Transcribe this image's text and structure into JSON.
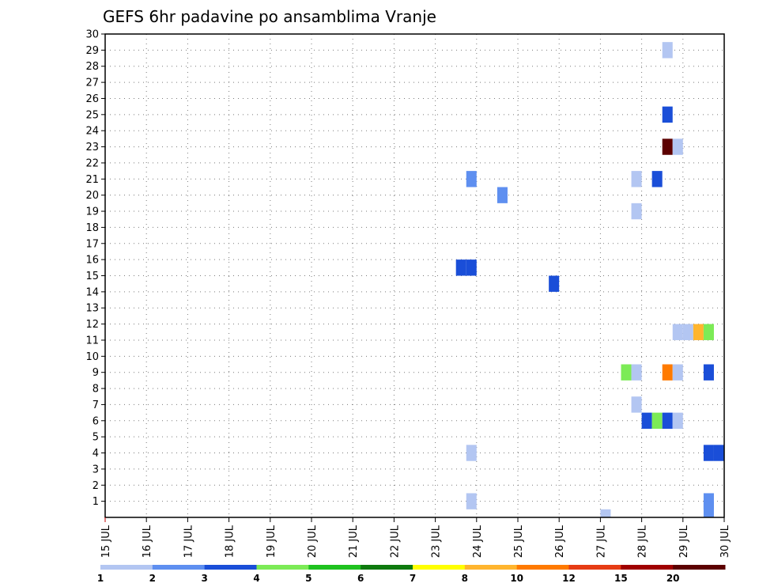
{
  "chart_data": {
    "type": "heatmap",
    "title": "GEFS 6hr padavine po ansamblima Vranje",
    "xlabel": "",
    "ylabel": "",
    "x_ticks": [
      "15 JUL",
      "16 JUL",
      "17 JUL",
      "18 JUL",
      "19 JUL",
      "20 JUL",
      "21 JUL",
      "22 JUL",
      "23 JUL",
      "24 JUL",
      "25 JUL",
      "26 JUL",
      "27 JUL",
      "28 JUL",
      "29 JUL",
      "30 JUL"
    ],
    "xlim": [
      0,
      60
    ],
    "y_ticks": [
      1,
      2,
      3,
      4,
      5,
      6,
      7,
      8,
      9,
      10,
      11,
      12,
      13,
      14,
      15,
      16,
      17,
      18,
      19,
      20,
      21,
      22,
      23,
      24,
      25,
      26,
      27,
      28,
      29,
      30
    ],
    "ylim": [
      0,
      30
    ],
    "grid": true,
    "legend_position": "bottom",
    "colorbar": {
      "labels": [
        "1",
        "2",
        "3",
        "4",
        "5",
        "6",
        "7",
        "8",
        "10",
        "12",
        "15",
        "20"
      ],
      "colors": [
        "#b3c6f2",
        "#5e8ff0",
        "#1a4ed8",
        "#7ceb56",
        "#1fc21f",
        "#0e7a0e",
        "#ffff00",
        "#ffb52e",
        "#ff7a00",
        "#e63c14",
        "#a00000",
        "#5c0000"
      ]
    },
    "cells": [
      {
        "x": 54.5,
        "y": 29,
        "level": 1
      },
      {
        "x": 54.5,
        "y": 25,
        "level": 3
      },
      {
        "x": 54.5,
        "y": 23,
        "level": 20
      },
      {
        "x": 55.5,
        "y": 23,
        "level": 1
      },
      {
        "x": 35.5,
        "y": 21,
        "level": 2
      },
      {
        "x": 51.5,
        "y": 21,
        "level": 1
      },
      {
        "x": 53.5,
        "y": 21,
        "level": 3
      },
      {
        "x": 38.5,
        "y": 20,
        "level": 2
      },
      {
        "x": 51.5,
        "y": 19,
        "level": 1
      },
      {
        "x": 34.5,
        "y": 15.5,
        "level": 3
      },
      {
        "x": 35.5,
        "y": 15.5,
        "level": 3
      },
      {
        "x": 43.5,
        "y": 14.5,
        "level": 3
      },
      {
        "x": 55.5,
        "y": 11.5,
        "level": 1
      },
      {
        "x": 56.5,
        "y": 11.5,
        "level": 1
      },
      {
        "x": 57.5,
        "y": 11.5,
        "level": 8
      },
      {
        "x": 58.5,
        "y": 11.5,
        "level": 4
      },
      {
        "x": 50.5,
        "y": 9,
        "level": 4
      },
      {
        "x": 51.5,
        "y": 9,
        "level": 1
      },
      {
        "x": 54.5,
        "y": 9,
        "level": 10
      },
      {
        "x": 55.5,
        "y": 9,
        "level": 1
      },
      {
        "x": 58.5,
        "y": 9,
        "level": 3
      },
      {
        "x": 51.5,
        "y": 7,
        "level": 1
      },
      {
        "x": 52.5,
        "y": 6,
        "level": 3
      },
      {
        "x": 53.5,
        "y": 6,
        "level": 4
      },
      {
        "x": 54.5,
        "y": 6,
        "level": 3
      },
      {
        "x": 55.5,
        "y": 6,
        "level": 1
      },
      {
        "x": 35.5,
        "y": 4,
        "level": 1
      },
      {
        "x": 58.5,
        "y": 4,
        "level": 3
      },
      {
        "x": 59.5,
        "y": 4,
        "level": 3
      },
      {
        "x": 35.5,
        "y": 1,
        "level": 1
      },
      {
        "x": 58.5,
        "y": 1,
        "level": 2
      },
      {
        "x": 58.5,
        "y": 0.5,
        "level": 2
      },
      {
        "x": 48.5,
        "y": 0,
        "level": 1
      }
    ]
  }
}
